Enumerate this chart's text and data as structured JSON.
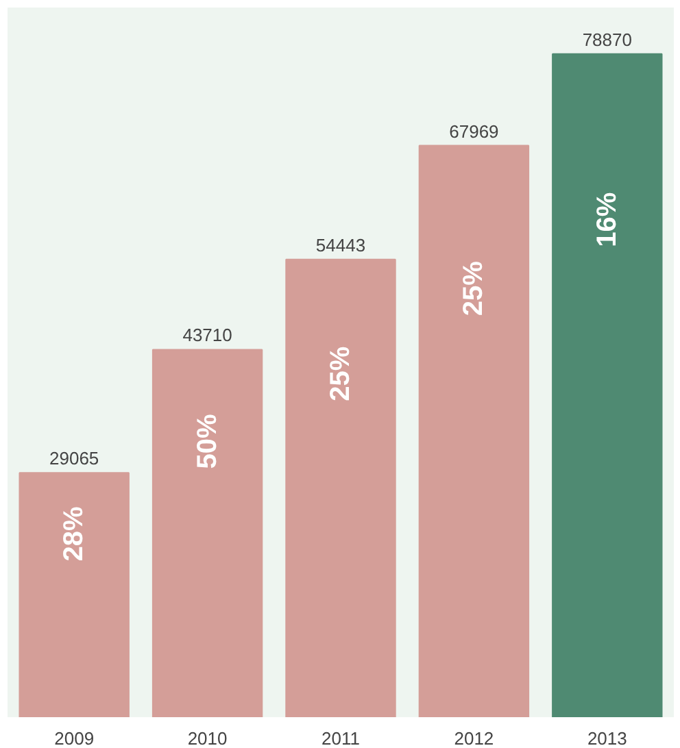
{
  "chart_data": {
    "type": "bar",
    "categories": [
      "2009",
      "2010",
      "2011",
      "2012",
      "2013"
    ],
    "values": [
      29065,
      43710,
      54443,
      67969,
      78870
    ],
    "colors": [
      "#d49e98",
      "#d49e98",
      "#d49e98",
      "#d49e98",
      "#4f8a72"
    ],
    "data_labels": true,
    "annotations": [
      "28%",
      "50%",
      "25%",
      "25%",
      "16%"
    ]
  }
}
